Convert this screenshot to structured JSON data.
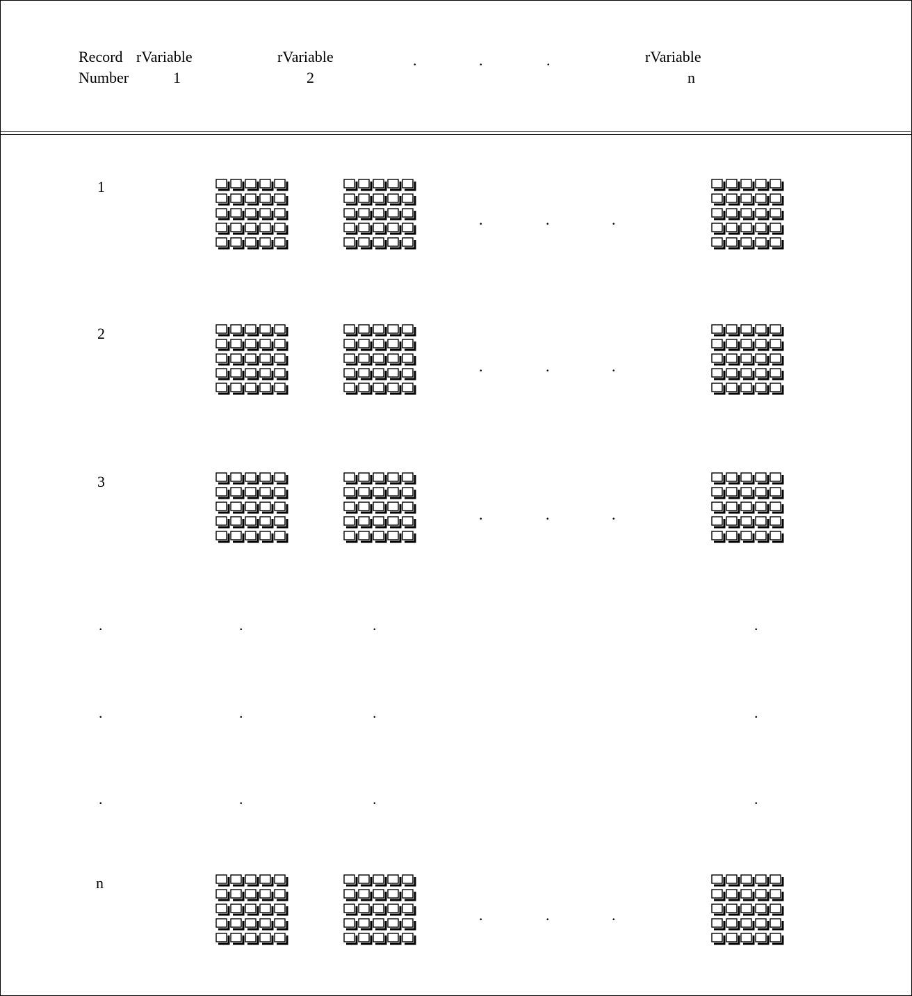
{
  "header": {
    "record_label_line1": "Record",
    "record_label_line2": "Number",
    "columns": [
      {
        "line1": "rVariable",
        "line2": "1"
      },
      {
        "line1": "rVariable",
        "line2": "2"
      },
      {
        "line1": "rVariable",
        "line2": "n"
      }
    ],
    "ellipsis_dots": [
      ".",
      ".",
      "."
    ]
  },
  "rows": [
    {
      "label": "1"
    },
    {
      "label": "2"
    },
    {
      "label": "3"
    },
    {
      "label": "n"
    }
  ],
  "ellipsis_rows": [
    {
      "dots": [
        ".",
        ".",
        ".",
        "."
      ]
    },
    {
      "dots": [
        ".",
        ".",
        ".",
        "."
      ]
    },
    {
      "dots": [
        ".",
        ".",
        ".",
        "."
      ]
    }
  ],
  "row_dots": [
    ".",
    ".",
    "."
  ],
  "grid_cells_per_side": 5,
  "icon": "checkbox-grid-icon"
}
